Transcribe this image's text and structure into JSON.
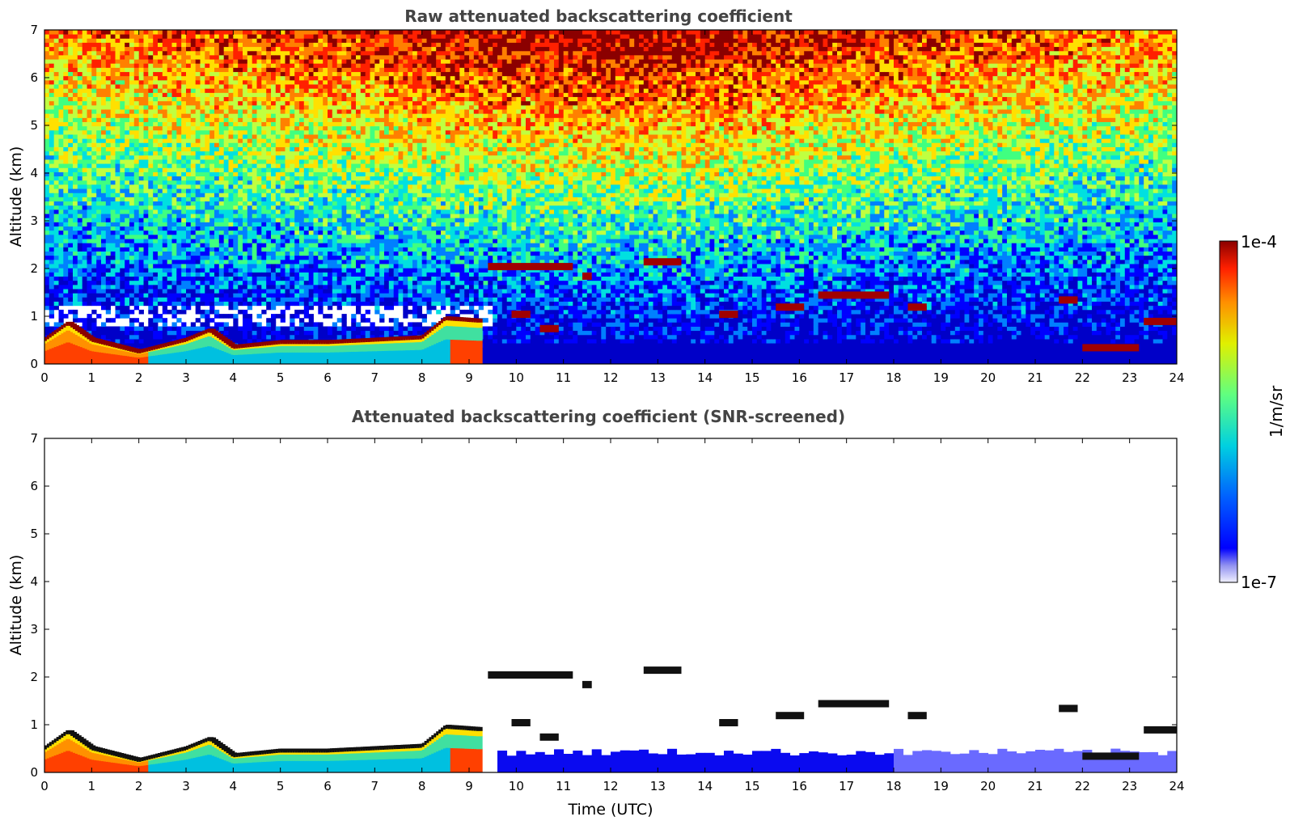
{
  "chart_data": [
    {
      "type": "heatmap",
      "title": "Raw attenuated backscattering coefficient",
      "xlabel": "",
      "ylabel": "Altitude (km)",
      "xlim": [
        0,
        24
      ],
      "ylim": [
        0,
        7
      ],
      "x_ticks": [
        "0",
        "1",
        "2",
        "3",
        "4",
        "5",
        "6",
        "7",
        "8",
        "9",
        "10",
        "11",
        "12",
        "13",
        "14",
        "15",
        "16",
        "17",
        "18",
        "19",
        "20",
        "21",
        "22",
        "23",
        "24"
      ],
      "y_ticks": [
        "0",
        "1",
        "2",
        "3",
        "4",
        "5",
        "6",
        "7"
      ],
      "screened": false,
      "boundary_layer_top_km": [
        [
          0,
          0.5
        ],
        [
          0.5,
          0.85
        ],
        [
          1,
          0.5
        ],
        [
          2,
          0.25
        ],
        [
          3,
          0.5
        ],
        [
          3.5,
          0.7
        ],
        [
          4,
          0.35
        ],
        [
          5,
          0.45
        ],
        [
          6,
          0.45
        ],
        [
          7,
          0.5
        ],
        [
          8,
          0.55
        ],
        [
          8.5,
          0.95
        ],
        [
          9.2,
          0.9
        ]
      ],
      "cloud_layers": [
        {
          "x": [
            9.4,
            11.2
          ],
          "alt_km": 2.05
        },
        {
          "x": [
            11.4,
            11.6
          ],
          "alt_km": 1.85
        },
        {
          "x": [
            12.7,
            13.5
          ],
          "alt_km": 2.15
        },
        {
          "x": [
            9.9,
            10.3
          ],
          "alt_km": 1.05
        },
        {
          "x": [
            10.5,
            10.9
          ],
          "alt_km": 0.75
        },
        {
          "x": [
            14.3,
            14.7
          ],
          "alt_km": 1.05
        },
        {
          "x": [
            15.5,
            16.1
          ],
          "alt_km": 1.2
        },
        {
          "x": [
            16.4,
            17.9
          ],
          "alt_km": 1.45
        },
        {
          "x": [
            18.3,
            18.7
          ],
          "alt_km": 1.2
        },
        {
          "x": [
            21.5,
            21.9
          ],
          "alt_km": 1.35
        },
        {
          "x": [
            22.0,
            23.2
          ],
          "alt_km": 0.35
        },
        {
          "x": [
            23.3,
            24.0
          ],
          "alt_km": 0.9
        }
      ],
      "clear_air_aerosol_band_km": [
        0,
        0.45
      ]
    },
    {
      "type": "heatmap",
      "title": "Attenuated backscattering coefficient (SNR-screened)",
      "xlabel": "Time (UTC)",
      "ylabel": "Altitude (km)",
      "xlim": [
        0,
        24
      ],
      "ylim": [
        0,
        7
      ],
      "x_ticks": [
        "0",
        "1",
        "2",
        "3",
        "4",
        "5",
        "6",
        "7",
        "8",
        "9",
        "10",
        "11",
        "12",
        "13",
        "14",
        "15",
        "16",
        "17",
        "18",
        "19",
        "20",
        "21",
        "22",
        "23",
        "24"
      ],
      "y_ticks": [
        "0",
        "1",
        "2",
        "3",
        "4",
        "5",
        "6",
        "7"
      ],
      "screened": true
    }
  ],
  "colorbar": {
    "max_label": "1e-4",
    "min_label": "1e-7",
    "unit_label": "1/m/sr",
    "scale": "log",
    "colormap": [
      "#0000c8",
      "#0000ff",
      "#0080ff",
      "#00e0e0",
      "#40ff80",
      "#c0ff40",
      "#ffe000",
      "#ff8000",
      "#ff2000",
      "#8b0000"
    ]
  }
}
